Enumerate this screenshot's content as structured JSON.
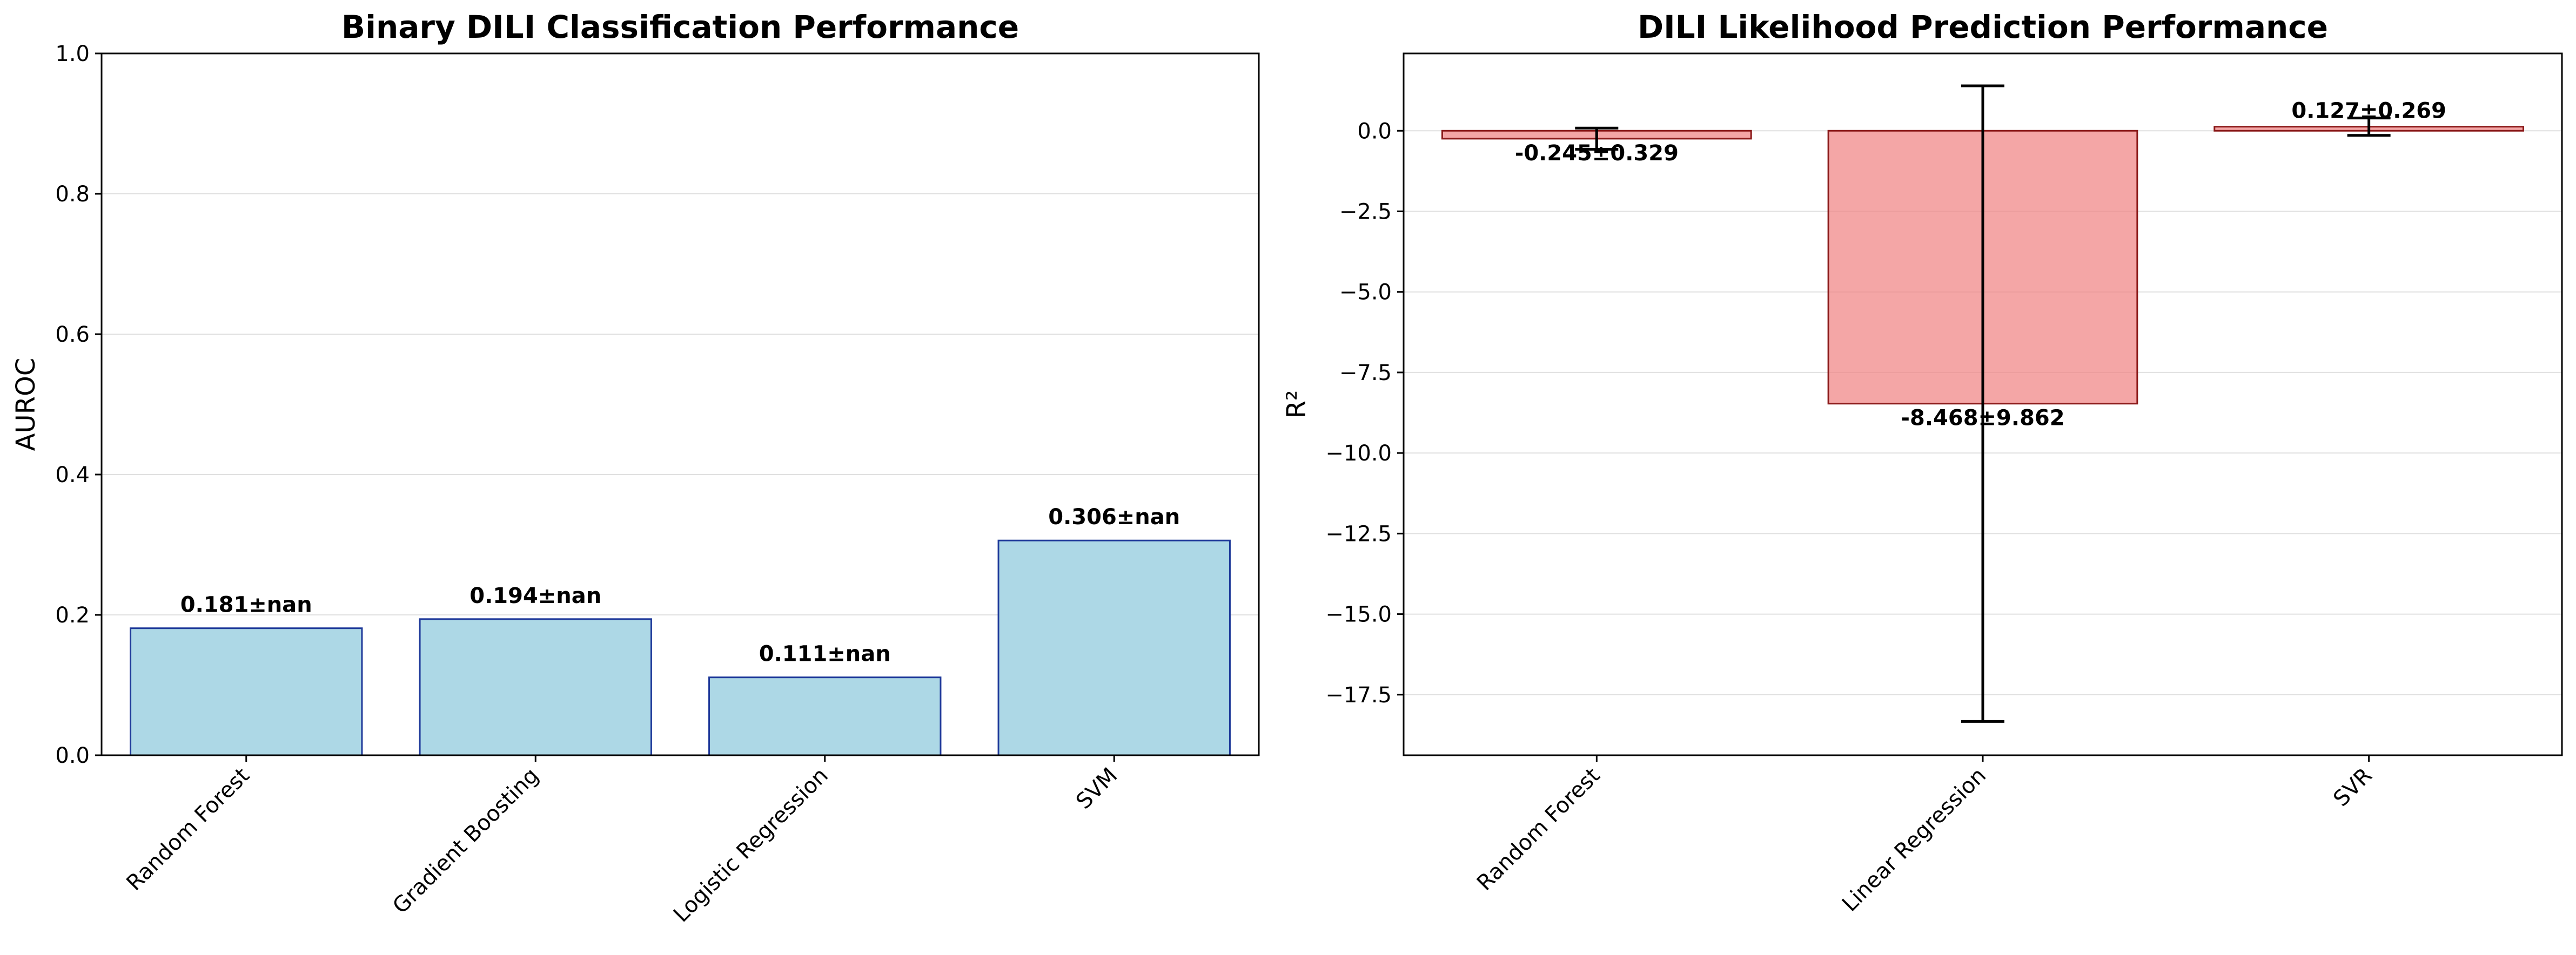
{
  "chart_data": [
    {
      "type": "bar",
      "title": "Binary DILI Classification Performance",
      "xlabel": "",
      "ylabel": "AUROC",
      "ylim": [
        0,
        1.0
      ],
      "yticks": [
        "0.0",
        "0.2",
        "0.4",
        "0.6",
        "0.8",
        "1.0"
      ],
      "ytick_values": [
        0,
        0.2,
        0.4,
        0.6,
        0.8,
        1.0
      ],
      "grid": "y",
      "categories": [
        "Random Forest",
        "Gradient Boosting",
        "Logistic Regression",
        "SVM"
      ],
      "values": [
        0.181,
        0.194,
        0.111,
        0.306
      ],
      "data_labels": [
        "0.181±nan",
        "0.194±nan",
        "0.111±nan",
        "0.306±nan"
      ],
      "bar_color": "#add8e6",
      "edge_color": "#1f3a9a"
    },
    {
      "type": "bar",
      "title": "DILI Likelihood Prediction Performance",
      "xlabel": "",
      "ylabel": "R²",
      "ylim": [
        -19.38,
        2.4
      ],
      "yticks": [
        "0.0",
        "−2.5",
        "−5.0",
        "−7.5",
        "−10.0",
        "−12.5",
        "−15.0",
        "−17.5"
      ],
      "ytick_values": [
        0,
        -2.5,
        -5.0,
        -7.5,
        -10.0,
        -12.5,
        -15.0,
        -17.5
      ],
      "grid": "y",
      "categories": [
        "Random Forest",
        "Linear Regression",
        "SVR"
      ],
      "values": [
        -0.245,
        -8.468,
        0.127
      ],
      "errors": [
        0.329,
        9.862,
        0.269
      ],
      "data_labels": [
        "-0.245±0.329",
        "-8.468±9.862",
        "0.127±0.269"
      ],
      "bar_color": "#f08080",
      "edge_color": "#8b1a1a"
    }
  ]
}
